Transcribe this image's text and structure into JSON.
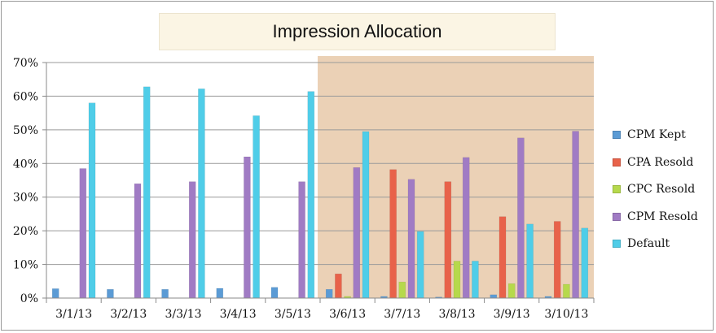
{
  "chart_data": {
    "type": "bar",
    "title": "Impression Allocation",
    "xlabel": "",
    "ylabel": "",
    "ylim": [
      0,
      70
    ],
    "y_ticks": [
      "0%",
      "10%",
      "20%",
      "30%",
      "40%",
      "50%",
      "60%",
      "70%"
    ],
    "grid": true,
    "legend_position": "right",
    "highlight_range": {
      "start": "3/6/13",
      "end": "3/10/13",
      "color": "#e7c9a9"
    },
    "categories": [
      "3/1/13",
      "3/2/13",
      "3/3/13",
      "3/4/13",
      "3/5/13",
      "3/6/13",
      "3/7/13",
      "3/8/13",
      "3/9/13",
      "3/10/13"
    ],
    "series": [
      {
        "name": "CPM Kept",
        "color": "#5b9bd5",
        "values": [
          2.8,
          2.6,
          2.6,
          2.9,
          3.2,
          2.6,
          0.5,
          0.3,
          1.0,
          0.5
        ]
      },
      {
        "name": "CPA Resold",
        "color": "#e8624a",
        "values": [
          0,
          0,
          0,
          0,
          0,
          7.2,
          38.2,
          34.6,
          24.2,
          22.8
        ]
      },
      {
        "name": "CPC Resold",
        "color": "#b6d94c",
        "values": [
          0,
          0,
          0,
          0,
          0,
          0.5,
          4.8,
          11.0,
          4.3,
          4.1
        ]
      },
      {
        "name": "CPM Resold",
        "color": "#a07bc4",
        "values": [
          38.5,
          34.0,
          34.6,
          42.0,
          34.6,
          38.8,
          35.3,
          41.8,
          47.6,
          49.6
        ]
      },
      {
        "name": "Default",
        "color": "#4fcde8",
        "values": [
          58.0,
          62.8,
          62.2,
          54.2,
          61.4,
          49.5,
          19.8,
          11.0,
          22.0,
          20.8
        ]
      }
    ]
  }
}
